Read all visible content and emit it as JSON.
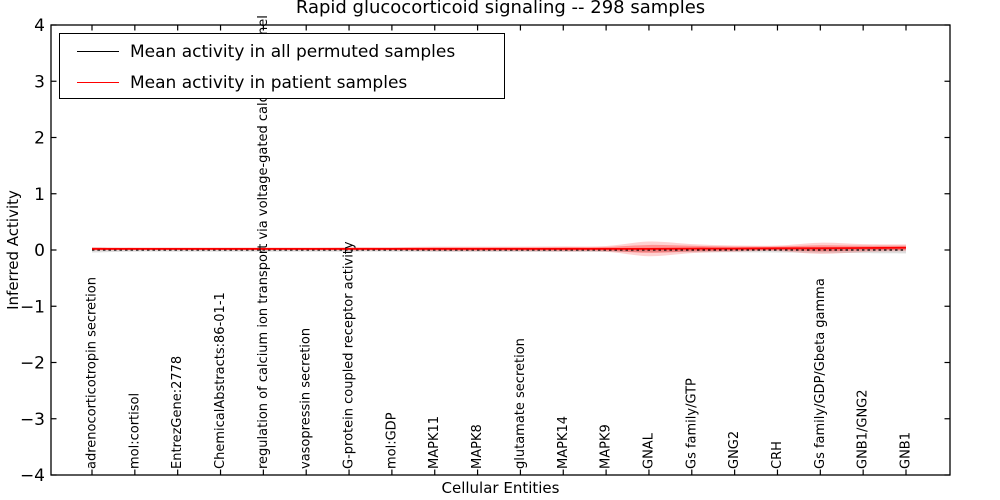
{
  "chart_data": {
    "type": "line",
    "title": "Rapid glucocorticoid signaling -- 298 samples",
    "xlabel": "Cellular Entities",
    "ylabel": "Inferred Activity",
    "ylim": [
      -4,
      4
    ],
    "yticks": [
      4,
      3,
      2,
      1,
      0,
      -1,
      -2,
      -3,
      -4
    ],
    "grid": false,
    "legend_position": "upper left",
    "categories": [
      "adrenocorticotropin secretion",
      "mol:cortisol",
      "EntrezGene:2778",
      "ChemicalAbstracts:86-01-1",
      "regulation of calcium ion transport via voltage-gated calcium channel",
      "vasopressin secretion",
      "G-protein coupled receptor activity",
      "mol:GDP",
      "MAPK11",
      "MAPK8",
      "glutamate secretion",
      "MAPK14",
      "MAPK9",
      "GNAL",
      "Gs family/GTP",
      "GNG2",
      "CRH",
      "Gs family/GDP/Gbeta gamma",
      "GNB1/GNG2",
      "GNB1"
    ],
    "series": [
      {
        "name": "Mean activity in all permuted samples",
        "color": "#000000",
        "line_style": "dashed",
        "values": [
          0,
          0,
          0,
          0,
          0,
          0,
          0,
          0,
          0,
          0,
          0,
          0,
          0,
          0,
          0,
          0,
          0,
          0,
          0,
          0
        ],
        "band_halfwidth": [
          0.045,
          0.03,
          0.03,
          0.03,
          0.03,
          0.03,
          0.03,
          0.03,
          0.035,
          0.035,
          0.035,
          0.035,
          0.035,
          0.04,
          0.04,
          0.04,
          0.045,
          0.05,
          0.055,
          0.06
        ],
        "band_color": "#aaaaaa",
        "band_alpha": 0.4
      },
      {
        "name": "Mean activity in patient samples",
        "color": "#ff0000",
        "line_style": "solid",
        "values": [
          0.02,
          0.02,
          0.02,
          0.02,
          0.02,
          0.02,
          0.02,
          0.02,
          0.02,
          0.02,
          0.02,
          0.02,
          0.02,
          0.02,
          0.025,
          0.025,
          0.03,
          0.03,
          0.035,
          0.04
        ],
        "band_halfwidth": [
          0.03,
          0.025,
          0.025,
          0.025,
          0.025,
          0.025,
          0.03,
          0.03,
          0.04,
          0.04,
          0.04,
          0.045,
          0.05,
          0.13,
          0.08,
          0.055,
          0.05,
          0.1,
          0.07,
          0.06
        ],
        "band_inner_halfwidth": [
          0.02,
          0.017,
          0.017,
          0.017,
          0.017,
          0.017,
          0.02,
          0.02,
          0.026,
          0.026,
          0.026,
          0.03,
          0.033,
          0.07,
          0.05,
          0.036,
          0.033,
          0.055,
          0.042,
          0.038
        ],
        "band_color": "#ff0000",
        "band_alpha": 0.18,
        "band_inner_alpha": 0.3
      }
    ]
  }
}
